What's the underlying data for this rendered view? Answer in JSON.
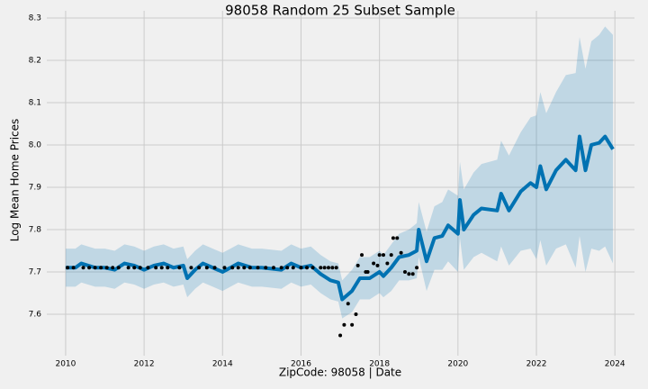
{
  "chart_data": {
    "type": "line",
    "title": "98058 Random 25 Subset Sample",
    "x_label": "ZipCode: 98058 | Date",
    "y_label": "Log Mean Home Prices",
    "color": "#0072B2",
    "band_color": "#0072B2",
    "points_color": "#000000",
    "grid": true,
    "xlim": [
      2009.52,
      2024.5
    ],
    "ylim": [
      7.502,
      8.317
    ],
    "xticks": [
      2010,
      2012,
      2014,
      2016,
      2018,
      2020,
      2022,
      2024
    ],
    "yticks": [
      7.6,
      7.7,
      7.8,
      7.9,
      {
        "value": 8,
        "label": "8.0"
      },
      8.1,
      8.2,
      8.3
    ],
    "x": [
      2010.0,
      2010.25,
      2010.4,
      2010.75,
      2011.0,
      2011.25,
      2011.5,
      2011.75,
      2012.0,
      2012.25,
      2012.5,
      2012.75,
      2013.0,
      2013.1,
      2013.3,
      2013.5,
      2013.75,
      2014.0,
      2014.4,
      2014.75,
      2015.0,
      2015.5,
      2015.75,
      2016.0,
      2016.25,
      2016.5,
      2016.75,
      2016.95,
      2017.05,
      2017.3,
      2017.5,
      2017.75,
      2018.0,
      2018.1,
      2018.3,
      2018.5,
      2018.75,
      2018.95,
      2019.0,
      2019.2,
      2019.4,
      2019.6,
      2019.75,
      2020.0,
      2020.05,
      2020.15,
      2020.4,
      2020.6,
      2021.0,
      2021.1,
      2021.3,
      2021.6,
      2021.85,
      2022.0,
      2022.1,
      2022.25,
      2022.5,
      2022.75,
      2023.0,
      2023.1,
      2023.25,
      2023.4,
      2023.6,
      2023.75,
      2023.95
    ],
    "values": [
      7.71,
      7.71,
      7.72,
      7.71,
      7.71,
      7.705,
      7.72,
      7.715,
      7.705,
      7.715,
      7.72,
      7.71,
      7.715,
      7.685,
      7.705,
      7.72,
      7.71,
      7.7,
      7.72,
      7.71,
      7.71,
      7.705,
      7.72,
      7.71,
      7.715,
      7.695,
      7.68,
      7.675,
      7.635,
      7.655,
      7.685,
      7.685,
      7.7,
      7.69,
      7.71,
      7.735,
      7.74,
      7.75,
      7.8,
      7.725,
      7.78,
      7.785,
      7.81,
      7.79,
      7.87,
      7.8,
      7.835,
      7.85,
      7.845,
      7.885,
      7.845,
      7.89,
      7.91,
      7.9,
      7.95,
      7.895,
      7.94,
      7.965,
      7.94,
      8.02,
      7.94,
      8.0,
      8.005,
      8.02,
      7.99
    ],
    "lower": [
      7.665,
      7.665,
      7.675,
      7.665,
      7.665,
      7.66,
      7.675,
      7.67,
      7.66,
      7.67,
      7.675,
      7.665,
      7.67,
      7.64,
      7.66,
      7.675,
      7.665,
      7.655,
      7.675,
      7.665,
      7.665,
      7.66,
      7.675,
      7.665,
      7.67,
      7.65,
      7.635,
      7.63,
      7.59,
      7.605,
      7.635,
      7.635,
      7.65,
      7.64,
      7.655,
      7.68,
      7.68,
      7.685,
      7.735,
      7.655,
      7.705,
      7.705,
      7.725,
      7.7,
      7.78,
      7.705,
      7.735,
      7.745,
      7.725,
      7.76,
      7.715,
      7.75,
      7.755,
      7.73,
      7.775,
      7.715,
      7.755,
      7.765,
      7.71,
      7.785,
      7.7,
      7.755,
      7.75,
      7.76,
      7.72
    ],
    "upper": [
      7.755,
      7.755,
      7.765,
      7.755,
      7.755,
      7.75,
      7.765,
      7.76,
      7.75,
      7.76,
      7.765,
      7.755,
      7.76,
      7.73,
      7.75,
      7.765,
      7.755,
      7.745,
      7.765,
      7.755,
      7.755,
      7.75,
      7.765,
      7.755,
      7.76,
      7.74,
      7.725,
      7.72,
      7.68,
      7.705,
      7.735,
      7.735,
      7.75,
      7.74,
      7.765,
      7.79,
      7.8,
      7.815,
      7.865,
      7.795,
      7.855,
      7.865,
      7.895,
      7.88,
      7.96,
      7.895,
      7.935,
      7.955,
      7.965,
      8.01,
      7.975,
      8.03,
      8.065,
      8.07,
      8.125,
      8.075,
      8.125,
      8.165,
      8.17,
      8.255,
      8.18,
      8.245,
      8.26,
      8.28,
      8.26
    ],
    "points": {
      "x": [
        2010.05,
        2010.2,
        2010.45,
        2010.6,
        2010.75,
        2010.9,
        2011.05,
        2011.2,
        2011.35,
        2011.6,
        2011.75,
        2011.9,
        2012.1,
        2012.3,
        2012.45,
        2012.6,
        2012.9,
        2013.2,
        2013.4,
        2013.6,
        2013.8,
        2014.05,
        2014.25,
        2014.4,
        2014.55,
        2014.7,
        2014.9,
        2015.1,
        2015.3,
        2015.5,
        2015.65,
        2015.8,
        2016.0,
        2016.15,
        2016.3,
        2016.5,
        2016.6,
        2016.7,
        2016.8,
        2016.9,
        2017.0,
        2017.1,
        2017.2,
        2017.3,
        2017.4,
        2017.45,
        2017.55,
        2017.65,
        2017.7,
        2017.85,
        2017.95,
        2018.0,
        2018.1,
        2018.2,
        2018.3,
        2018.35,
        2018.45,
        2018.55,
        2018.65,
        2018.75,
        2018.85,
        2018.95
      ],
      "values": [
        7.71,
        7.71,
        7.71,
        7.71,
        7.71,
        7.71,
        7.71,
        7.71,
        7.71,
        7.71,
        7.71,
        7.71,
        7.71,
        7.71,
        7.71,
        7.71,
        7.71,
        7.71,
        7.71,
        7.71,
        7.71,
        7.71,
        7.71,
        7.71,
        7.71,
        7.71,
        7.71,
        7.71,
        7.71,
        7.71,
        7.71,
        7.71,
        7.71,
        7.71,
        7.71,
        7.71,
        7.71,
        7.71,
        7.71,
        7.71,
        7.55,
        7.575,
        7.625,
        7.575,
        7.6,
        7.715,
        7.74,
        7.7,
        7.7,
        7.72,
        7.715,
        7.74,
        7.74,
        7.72,
        7.74,
        7.78,
        7.78,
        7.745,
        7.7,
        7.695,
        7.695,
        7.71
      ]
    }
  }
}
